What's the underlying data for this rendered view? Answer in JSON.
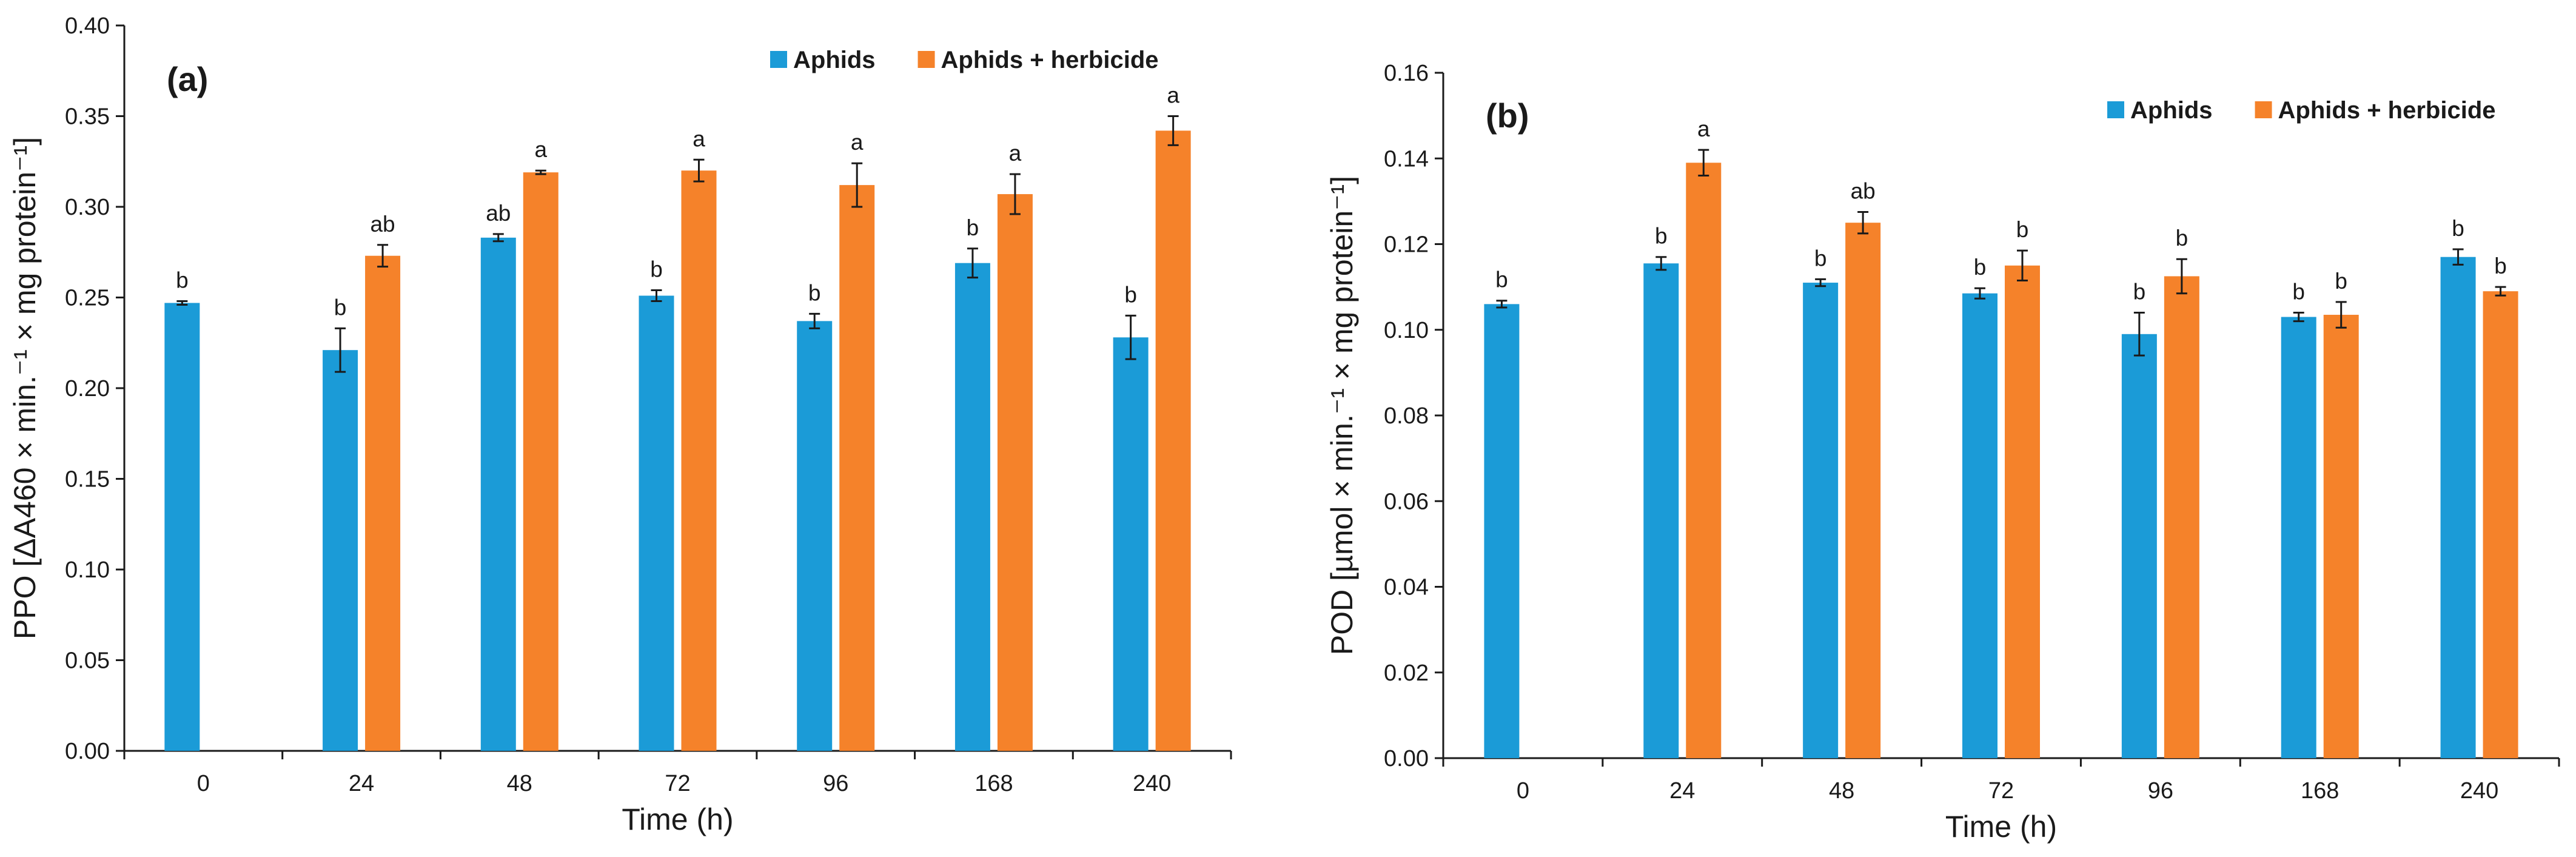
{
  "colors": {
    "aphids": "#1b9bd7",
    "herbicide": "#f5822a"
  },
  "chart_data": [
    {
      "type": "bar",
      "panel_label": "(a)",
      "xlabel": "Time (h)",
      "ylabel": "PPO [ΔA460 × min.⁻¹ × mg protein⁻¹]",
      "ylim": [
        0,
        0.4
      ],
      "yticks": [
        "0.00",
        "0.05",
        "0.10",
        "0.15",
        "0.20",
        "0.25",
        "0.30",
        "0.35",
        "0.40"
      ],
      "categories": [
        "0",
        "24",
        "48",
        "72",
        "96",
        "168",
        "240"
      ],
      "legend_position": "top-right",
      "series": [
        {
          "name": "Aphids",
          "color": "#1b9bd7",
          "values": [
            0.247,
            0.221,
            0.283,
            0.251,
            0.237,
            0.269,
            0.228
          ],
          "errors": [
            0.001,
            0.012,
            0.002,
            0.003,
            0.004,
            0.008,
            0.012
          ],
          "letters": [
            "b",
            "b",
            "ab",
            "b",
            "b",
            "b",
            "b"
          ]
        },
        {
          "name": "Aphids + herbicide",
          "color": "#f5822a",
          "values": [
            null,
            0.273,
            0.319,
            0.32,
            0.312,
            0.307,
            0.342
          ],
          "errors": [
            null,
            0.006,
            0.001,
            0.006,
            0.012,
            0.011,
            0.008
          ],
          "letters": [
            "",
            "ab",
            "a",
            "a",
            "a",
            "a",
            "a"
          ]
        }
      ]
    },
    {
      "type": "bar",
      "panel_label": "(b)",
      "xlabel": "Time (h)",
      "ylabel": "POD [µmol × min.⁻¹ × mg protein⁻¹]",
      "ylim": [
        0,
        0.16
      ],
      "yticks": [
        "0.00",
        "0.02",
        "0.04",
        "0.06",
        "0.08",
        "0.10",
        "0.12",
        "0.14",
        "0.16"
      ],
      "categories": [
        "0",
        "24",
        "48",
        "72",
        "96",
        "168",
        "240"
      ],
      "legend_position": "top-right",
      "series": [
        {
          "name": "Aphids",
          "color": "#1b9bd7",
          "values": [
            0.106,
            0.1155,
            0.111,
            0.1085,
            0.099,
            0.103,
            0.117
          ],
          "errors": [
            0.0008,
            0.0015,
            0.0008,
            0.0012,
            0.005,
            0.001,
            0.0018
          ],
          "letters": [
            "b",
            "b",
            "b",
            "b",
            "b",
            "b",
            "b"
          ]
        },
        {
          "name": "Aphids + herbicide",
          "color": "#f5822a",
          "values": [
            null,
            0.139,
            0.125,
            0.115,
            0.1125,
            0.1035,
            0.109
          ],
          "errors": [
            null,
            0.003,
            0.0025,
            0.0035,
            0.004,
            0.003,
            0.001
          ],
          "letters": [
            "",
            "a",
            "ab",
            "b",
            "b",
            "b",
            "b"
          ]
        }
      ]
    }
  ]
}
